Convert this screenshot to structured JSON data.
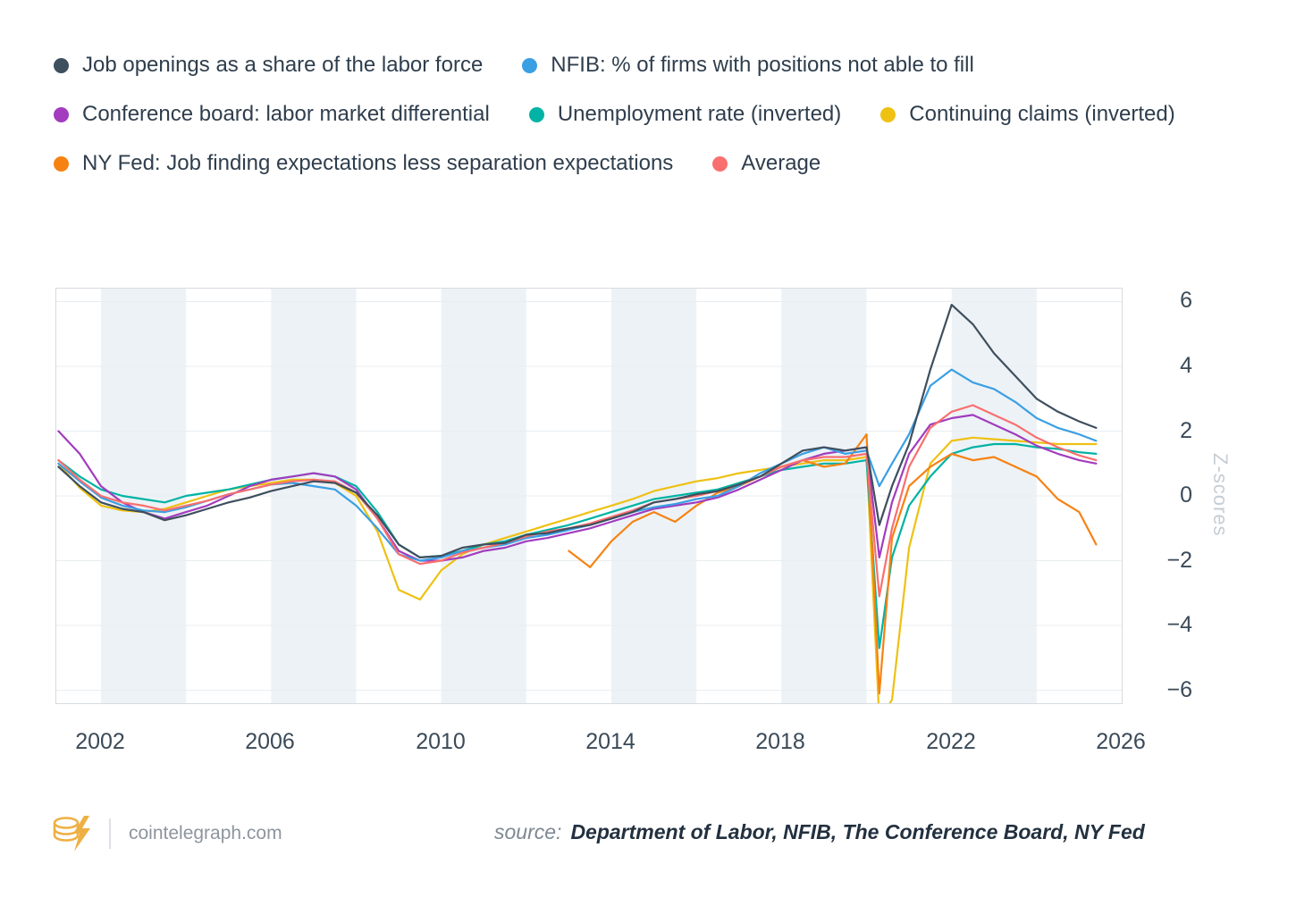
{
  "legend": {
    "position": "top-left",
    "items": [
      {
        "label": "Job openings as a share of the labor force",
        "color": "#3e4f5e"
      },
      {
        "label": "NFIB: % of firms with positions not able to fill",
        "color": "#3b9fe3"
      },
      {
        "label": "Conference board: labor market differential",
        "color": "#a13dbe"
      },
      {
        "label": "Unemployment rate (inverted)",
        "color": "#00b3a4"
      },
      {
        "label": "Continuing claims (inverted)",
        "color": "#eec113"
      },
      {
        "label": "NY Fed: Job finding expectations less separation expectations",
        "color": "#f68212"
      },
      {
        "label": "Average",
        "color": "#f96f6f"
      }
    ]
  },
  "chart_data": {
    "type": "line",
    "title": "",
    "xlabel": "",
    "ylabel": "Z-scores",
    "xlim": [
      2000.95,
      2026.0
    ],
    "ylim": [
      -6.4,
      6.4
    ],
    "xticks": [
      2002,
      2006,
      2010,
      2014,
      2018,
      2022,
      2026
    ],
    "yticks": [
      6,
      4,
      2,
      0,
      -2,
      -4,
      -6
    ],
    "grid": "horizontal-faint",
    "stripe_color": "#edf2f6",
    "stripes": [
      [
        2002,
        2004
      ],
      [
        2006,
        2008
      ],
      [
        2010,
        2012
      ],
      [
        2014,
        2016
      ],
      [
        2018,
        2020
      ],
      [
        2022,
        2024
      ]
    ],
    "x": [
      2001,
      2001.5,
      2002,
      2002.5,
      2003,
      2003.5,
      2004,
      2004.5,
      2005,
      2005.5,
      2006,
      2006.5,
      2007,
      2007.5,
      2008,
      2008.5,
      2009,
      2009.5,
      2010,
      2010.5,
      2011,
      2011.5,
      2012,
      2012.5,
      2013,
      2013.5,
      2014,
      2014.5,
      2015,
      2015.5,
      2016,
      2016.5,
      2017,
      2017.5,
      2018,
      2018.5,
      2019,
      2019.5,
      2020,
      2020.3,
      2020.6,
      2021,
      2021.5,
      2022,
      2022.5,
      2023,
      2023.5,
      2024,
      2024.5,
      2025,
      2025.4
    ],
    "series": [
      {
        "id": "continuing-claims",
        "name": "Continuing claims (inverted)",
        "color": "#eec113",
        "values": [
          1.0,
          0.25,
          -0.3,
          -0.45,
          -0.5,
          -0.4,
          -0.2,
          0.0,
          0.2,
          0.3,
          0.4,
          0.5,
          0.5,
          0.4,
          0.0,
          -1.1,
          -2.9,
          -3.2,
          -2.3,
          -1.8,
          -1.5,
          -1.3,
          -1.1,
          -0.9,
          -0.7,
          -0.5,
          -0.3,
          -0.1,
          0.15,
          0.3,
          0.45,
          0.55,
          0.7,
          0.8,
          0.9,
          1.0,
          1.1,
          1.1,
          1.2,
          -6.9,
          -6.3,
          -1.6,
          1.0,
          1.7,
          1.8,
          1.75,
          1.7,
          1.65,
          1.6,
          1.6,
          1.6
        ]
      },
      {
        "id": "unemployment-rate",
        "name": "Unemployment rate (inverted)",
        "color": "#00b3a4",
        "values": [
          1.1,
          0.6,
          0.2,
          0.0,
          -0.1,
          -0.2,
          0.0,
          0.1,
          0.2,
          0.35,
          0.5,
          0.6,
          0.7,
          0.6,
          0.3,
          -0.5,
          -1.5,
          -1.9,
          -1.85,
          -1.7,
          -1.5,
          -1.4,
          -1.2,
          -1.05,
          -0.9,
          -0.7,
          -0.5,
          -0.3,
          -0.1,
          0.0,
          0.1,
          0.2,
          0.4,
          0.6,
          0.8,
          0.9,
          1.0,
          1.0,
          1.1,
          -4.7,
          -1.9,
          -0.3,
          0.6,
          1.3,
          1.5,
          1.6,
          1.6,
          1.5,
          1.45,
          1.35,
          1.3
        ]
      },
      {
        "id": "ny-fed-expectations",
        "name": "NY Fed: Job finding expectations less separation expectations",
        "color": "#f68212",
        "values": [
          null,
          null,
          null,
          null,
          null,
          null,
          null,
          null,
          null,
          null,
          null,
          null,
          null,
          null,
          null,
          null,
          null,
          null,
          null,
          null,
          null,
          null,
          null,
          null,
          -1.7,
          -2.2,
          -1.4,
          -0.8,
          -0.5,
          -0.8,
          -0.3,
          0.1,
          0.3,
          0.6,
          0.9,
          1.1,
          0.9,
          1.0,
          1.9,
          -6.1,
          -1.3,
          0.3,
          0.9,
          1.3,
          1.1,
          1.2,
          0.9,
          0.6,
          -0.1,
          -0.5,
          -1.5
        ]
      },
      {
        "id": "conference-board",
        "name": "Conference board: labor market differential",
        "color": "#a13dbe",
        "values": [
          2.0,
          1.3,
          0.3,
          -0.2,
          -0.5,
          -0.7,
          -0.5,
          -0.3,
          0.0,
          0.3,
          0.5,
          0.6,
          0.7,
          0.6,
          0.2,
          -0.7,
          -1.7,
          -2.0,
          -2.0,
          -1.9,
          -1.7,
          -1.6,
          -1.4,
          -1.3,
          -1.15,
          -1.0,
          -0.8,
          -0.6,
          -0.4,
          -0.3,
          -0.2,
          -0.05,
          0.2,
          0.5,
          0.8,
          1.1,
          1.3,
          1.4,
          1.5,
          -1.9,
          -0.2,
          1.3,
          2.2,
          2.4,
          2.5,
          2.2,
          1.9,
          1.55,
          1.3,
          1.1,
          1.0
        ]
      },
      {
        "id": "nfib-positions",
        "name": "NFIB: % of firms with positions not able to fill",
        "color": "#3b9fe3",
        "values": [
          1.0,
          0.45,
          -0.05,
          -0.3,
          -0.45,
          -0.5,
          -0.35,
          -0.15,
          0.05,
          0.2,
          0.35,
          0.4,
          0.3,
          0.2,
          -0.3,
          -1.0,
          -1.8,
          -2.0,
          -1.9,
          -1.7,
          -1.6,
          -1.5,
          -1.3,
          -1.2,
          -1.05,
          -0.9,
          -0.7,
          -0.5,
          -0.35,
          -0.25,
          -0.1,
          0.0,
          0.3,
          0.7,
          1.0,
          1.3,
          1.5,
          1.3,
          1.4,
          0.3,
          1.0,
          1.9,
          3.4,
          3.9,
          3.5,
          3.3,
          2.9,
          2.4,
          2.1,
          1.9,
          1.7
        ]
      },
      {
        "id": "average",
        "name": "Average",
        "color": "#f96f6f",
        "values": [
          1.1,
          0.5,
          0.0,
          -0.2,
          -0.3,
          -0.45,
          -0.3,
          -0.15,
          0.05,
          0.2,
          0.35,
          0.45,
          0.5,
          0.45,
          0.1,
          -0.7,
          -1.8,
          -2.1,
          -2.0,
          -1.75,
          -1.6,
          -1.45,
          -1.25,
          -1.1,
          -1.0,
          -0.85,
          -0.65,
          -0.45,
          -0.2,
          -0.1,
          0.0,
          0.15,
          0.35,
          0.6,
          0.9,
          1.1,
          1.2,
          1.2,
          1.3,
          -3.1,
          -1.0,
          0.9,
          2.1,
          2.6,
          2.8,
          2.5,
          2.2,
          1.8,
          1.5,
          1.25,
          1.1
        ]
      },
      {
        "id": "job-openings",
        "name": "Job openings as a share of the labor force",
        "color": "#3e4f5e",
        "values": [
          0.9,
          0.3,
          -0.2,
          -0.4,
          -0.5,
          -0.75,
          -0.6,
          -0.4,
          -0.2,
          -0.05,
          0.15,
          0.3,
          0.45,
          0.4,
          0.1,
          -0.6,
          -1.5,
          -1.9,
          -1.85,
          -1.6,
          -1.5,
          -1.45,
          -1.2,
          -1.15,
          -1.0,
          -0.9,
          -0.7,
          -0.5,
          -0.2,
          -0.1,
          0.05,
          0.15,
          0.35,
          0.6,
          1.0,
          1.4,
          1.5,
          1.4,
          1.5,
          -0.9,
          0.3,
          1.6,
          3.9,
          5.9,
          5.3,
          4.4,
          3.7,
          3.0,
          2.6,
          2.3,
          2.1
        ]
      }
    ]
  },
  "footer": {
    "brand": "cointelegraph.com",
    "source_label": "source:",
    "source_text": "Department of Labor, NFIB, The Conference Board, NY Fed",
    "logo_color": "#eeb044"
  }
}
